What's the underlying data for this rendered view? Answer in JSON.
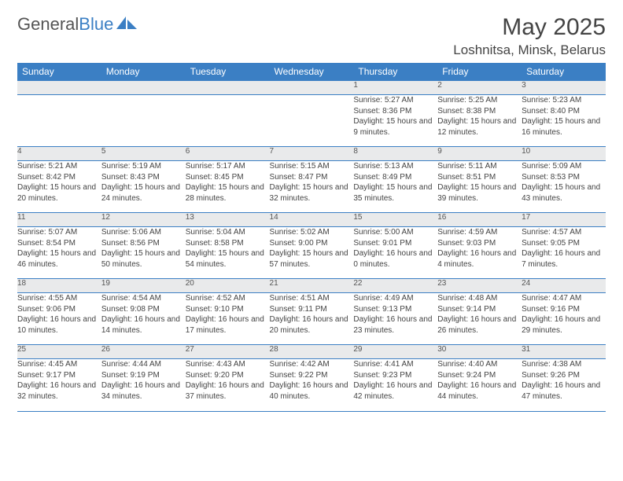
{
  "logo": {
    "text_general": "General",
    "text_blue": "Blue"
  },
  "header": {
    "month_title": "May 2025",
    "location": "Loshnitsa, Minsk, Belarus"
  },
  "colors": {
    "header_bg": "#3b7fc4",
    "daynum_bg": "#e9eaeb",
    "rule": "#3b7fc4",
    "text": "#444444"
  },
  "day_headers": [
    "Sunday",
    "Monday",
    "Tuesday",
    "Wednesday",
    "Thursday",
    "Friday",
    "Saturday"
  ],
  "weeks": [
    {
      "nums": [
        "",
        "",
        "",
        "",
        "1",
        "2",
        "3"
      ],
      "cells": [
        null,
        null,
        null,
        null,
        {
          "sunrise": "Sunrise: 5:27 AM",
          "sunset": "Sunset: 8:36 PM",
          "daylight": "Daylight: 15 hours and 9 minutes."
        },
        {
          "sunrise": "Sunrise: 5:25 AM",
          "sunset": "Sunset: 8:38 PM",
          "daylight": "Daylight: 15 hours and 12 minutes."
        },
        {
          "sunrise": "Sunrise: 5:23 AM",
          "sunset": "Sunset: 8:40 PM",
          "daylight": "Daylight: 15 hours and 16 minutes."
        }
      ]
    },
    {
      "nums": [
        "4",
        "5",
        "6",
        "7",
        "8",
        "9",
        "10"
      ],
      "cells": [
        {
          "sunrise": "Sunrise: 5:21 AM",
          "sunset": "Sunset: 8:42 PM",
          "daylight": "Daylight: 15 hours and 20 minutes."
        },
        {
          "sunrise": "Sunrise: 5:19 AM",
          "sunset": "Sunset: 8:43 PM",
          "daylight": "Daylight: 15 hours and 24 minutes."
        },
        {
          "sunrise": "Sunrise: 5:17 AM",
          "sunset": "Sunset: 8:45 PM",
          "daylight": "Daylight: 15 hours and 28 minutes."
        },
        {
          "sunrise": "Sunrise: 5:15 AM",
          "sunset": "Sunset: 8:47 PM",
          "daylight": "Daylight: 15 hours and 32 minutes."
        },
        {
          "sunrise": "Sunrise: 5:13 AM",
          "sunset": "Sunset: 8:49 PM",
          "daylight": "Daylight: 15 hours and 35 minutes."
        },
        {
          "sunrise": "Sunrise: 5:11 AM",
          "sunset": "Sunset: 8:51 PM",
          "daylight": "Daylight: 15 hours and 39 minutes."
        },
        {
          "sunrise": "Sunrise: 5:09 AM",
          "sunset": "Sunset: 8:53 PM",
          "daylight": "Daylight: 15 hours and 43 minutes."
        }
      ]
    },
    {
      "nums": [
        "11",
        "12",
        "13",
        "14",
        "15",
        "16",
        "17"
      ],
      "cells": [
        {
          "sunrise": "Sunrise: 5:07 AM",
          "sunset": "Sunset: 8:54 PM",
          "daylight": "Daylight: 15 hours and 46 minutes."
        },
        {
          "sunrise": "Sunrise: 5:06 AM",
          "sunset": "Sunset: 8:56 PM",
          "daylight": "Daylight: 15 hours and 50 minutes."
        },
        {
          "sunrise": "Sunrise: 5:04 AM",
          "sunset": "Sunset: 8:58 PM",
          "daylight": "Daylight: 15 hours and 54 minutes."
        },
        {
          "sunrise": "Sunrise: 5:02 AM",
          "sunset": "Sunset: 9:00 PM",
          "daylight": "Daylight: 15 hours and 57 minutes."
        },
        {
          "sunrise": "Sunrise: 5:00 AM",
          "sunset": "Sunset: 9:01 PM",
          "daylight": "Daylight: 16 hours and 0 minutes."
        },
        {
          "sunrise": "Sunrise: 4:59 AM",
          "sunset": "Sunset: 9:03 PM",
          "daylight": "Daylight: 16 hours and 4 minutes."
        },
        {
          "sunrise": "Sunrise: 4:57 AM",
          "sunset": "Sunset: 9:05 PM",
          "daylight": "Daylight: 16 hours and 7 minutes."
        }
      ]
    },
    {
      "nums": [
        "18",
        "19",
        "20",
        "21",
        "22",
        "23",
        "24"
      ],
      "cells": [
        {
          "sunrise": "Sunrise: 4:55 AM",
          "sunset": "Sunset: 9:06 PM",
          "daylight": "Daylight: 16 hours and 10 minutes."
        },
        {
          "sunrise": "Sunrise: 4:54 AM",
          "sunset": "Sunset: 9:08 PM",
          "daylight": "Daylight: 16 hours and 14 minutes."
        },
        {
          "sunrise": "Sunrise: 4:52 AM",
          "sunset": "Sunset: 9:10 PM",
          "daylight": "Daylight: 16 hours and 17 minutes."
        },
        {
          "sunrise": "Sunrise: 4:51 AM",
          "sunset": "Sunset: 9:11 PM",
          "daylight": "Daylight: 16 hours and 20 minutes."
        },
        {
          "sunrise": "Sunrise: 4:49 AM",
          "sunset": "Sunset: 9:13 PM",
          "daylight": "Daylight: 16 hours and 23 minutes."
        },
        {
          "sunrise": "Sunrise: 4:48 AM",
          "sunset": "Sunset: 9:14 PM",
          "daylight": "Daylight: 16 hours and 26 minutes."
        },
        {
          "sunrise": "Sunrise: 4:47 AM",
          "sunset": "Sunset: 9:16 PM",
          "daylight": "Daylight: 16 hours and 29 minutes."
        }
      ]
    },
    {
      "nums": [
        "25",
        "26",
        "27",
        "28",
        "29",
        "30",
        "31"
      ],
      "cells": [
        {
          "sunrise": "Sunrise: 4:45 AM",
          "sunset": "Sunset: 9:17 PM",
          "daylight": "Daylight: 16 hours and 32 minutes."
        },
        {
          "sunrise": "Sunrise: 4:44 AM",
          "sunset": "Sunset: 9:19 PM",
          "daylight": "Daylight: 16 hours and 34 minutes."
        },
        {
          "sunrise": "Sunrise: 4:43 AM",
          "sunset": "Sunset: 9:20 PM",
          "daylight": "Daylight: 16 hours and 37 minutes."
        },
        {
          "sunrise": "Sunrise: 4:42 AM",
          "sunset": "Sunset: 9:22 PM",
          "daylight": "Daylight: 16 hours and 40 minutes."
        },
        {
          "sunrise": "Sunrise: 4:41 AM",
          "sunset": "Sunset: 9:23 PM",
          "daylight": "Daylight: 16 hours and 42 minutes."
        },
        {
          "sunrise": "Sunrise: 4:40 AM",
          "sunset": "Sunset: 9:24 PM",
          "daylight": "Daylight: 16 hours and 44 minutes."
        },
        {
          "sunrise": "Sunrise: 4:38 AM",
          "sunset": "Sunset: 9:26 PM",
          "daylight": "Daylight: 16 hours and 47 minutes."
        }
      ]
    }
  ]
}
